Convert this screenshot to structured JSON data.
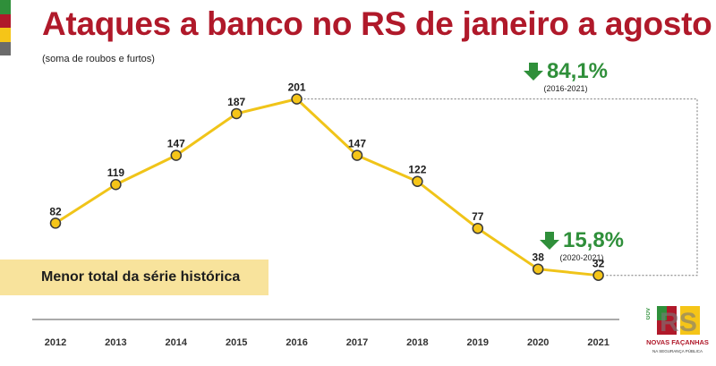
{
  "header": {
    "title": "Ataques a banco no RS de janeiro a agosto",
    "subtitle": "(soma de roubos e furtos)"
  },
  "colors": {
    "title": "#b0192a",
    "line": "#f0c419",
    "marker_fill": "#f5c518",
    "marker_stroke": "#3a3a3a",
    "positive_change": "#2f8f3a",
    "callout_bg": "#f8e39c",
    "flag": [
      "#2f8f3a",
      "#b0192a",
      "#f5c518",
      "#6b6b6b"
    ]
  },
  "changes": [
    {
      "value": "84,1%",
      "period": "(2016-2021)",
      "direction": "down",
      "icon": "arrow-down-icon"
    },
    {
      "value": "15,8%",
      "period": "(2020-2021)",
      "direction": "down",
      "icon": "arrow-down-icon"
    }
  ],
  "callout": {
    "text": "Menor total da série histórica"
  },
  "logo": {
    "gov_tag": "GOV",
    "mark": "RS",
    "name": "NOVAS FAÇANHAS",
    "tagline": "NA SEGURANÇA PÚBLICA"
  },
  "chart_data": {
    "type": "line",
    "categories": [
      "2012",
      "2013",
      "2014",
      "2015",
      "2016",
      "2017",
      "2018",
      "2019",
      "2020",
      "2021"
    ],
    "values": [
      82,
      119,
      147,
      187,
      201,
      147,
      122,
      77,
      38,
      32
    ],
    "title": "Ataques a banco no RS de janeiro a agosto",
    "subtitle": "(soma de roubos e furtos)",
    "xlabel": "",
    "ylabel": "",
    "ylim": [
      0,
      220
    ],
    "grid": false,
    "legend": "none",
    "data_labels": true
  }
}
